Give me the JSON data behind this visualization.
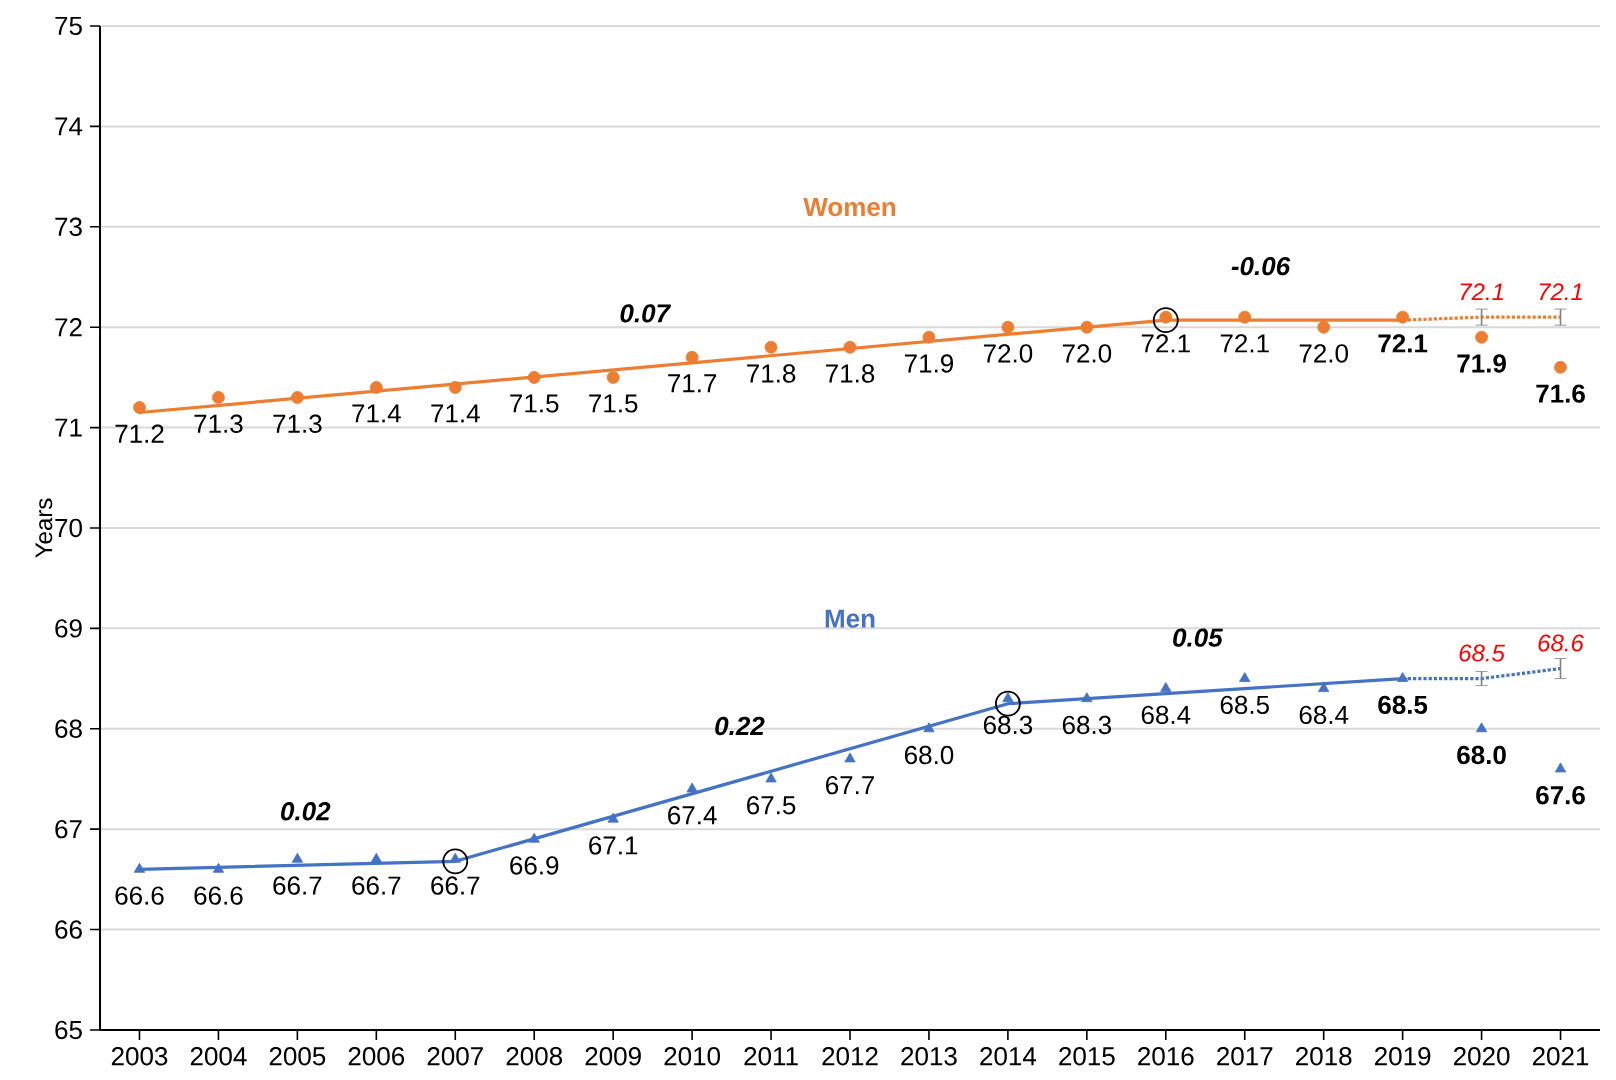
{
  "chart_data": {
    "type": "scatter",
    "ylabel": "Years",
    "xlim": [
      2002.5,
      2021.5
    ],
    "ylim": [
      65,
      75
    ],
    "xticks": [
      2003,
      2004,
      2005,
      2006,
      2007,
      2008,
      2009,
      2010,
      2011,
      2012,
      2013,
      2014,
      2015,
      2016,
      2017,
      2018,
      2019,
      2020,
      2021
    ],
    "yticks": [
      65,
      66,
      67,
      68,
      69,
      70,
      71,
      72,
      73,
      74,
      75
    ],
    "grid": "y",
    "x": [
      2003,
      2004,
      2005,
      2006,
      2007,
      2008,
      2009,
      2010,
      2011,
      2012,
      2013,
      2014,
      2015,
      2016,
      2017,
      2018,
      2019,
      2020,
      2021
    ],
    "series": [
      {
        "name": "Women",
        "marker": "circle",
        "color": "#ed7d31",
        "values": [
          71.2,
          71.3,
          71.3,
          71.4,
          71.4,
          71.5,
          71.5,
          71.7,
          71.8,
          71.8,
          71.9,
          72.0,
          72.0,
          72.1,
          72.1,
          72.0,
          72.1,
          71.9,
          71.6
        ],
        "value_labels": [
          "71.2",
          "71.3",
          "71.3",
          "71.4",
          "71.4",
          "71.5",
          "71.5",
          "71.7",
          "71.8",
          "71.8",
          "71.9",
          "72.0",
          "72.0",
          "72.1",
          "72.1",
          "72.0",
          "72.1",
          "71.9",
          "71.6"
        ]
      },
      {
        "name": "Men",
        "marker": "triangle",
        "color": "#4472c4",
        "values": [
          66.6,
          66.6,
          66.7,
          66.7,
          66.7,
          66.9,
          67.1,
          67.4,
          67.5,
          67.7,
          68.0,
          68.3,
          68.3,
          68.4,
          68.5,
          68.4,
          68.5,
          68.0,
          67.6
        ],
        "value_labels": [
          "66.6",
          "66.6",
          "66.7",
          "66.7",
          "66.7",
          "66.9",
          "67.1",
          "67.4",
          "67.5",
          "67.7",
          "68.0",
          "68.3",
          "68.3",
          "68.4",
          "68.5",
          "68.4",
          "68.5",
          "68.0",
          "67.6"
        ]
      },
      {
        "type": "line",
        "marker": "none",
        "line_style": "solid",
        "color": "#ed7d31",
        "x": [
          2003,
          2016,
          2019
        ],
        "values": [
          71.15,
          72.07,
          72.07
        ]
      },
      {
        "type": "line",
        "marker": "none",
        "line_style": "solid",
        "color": "#4472c4",
        "x": [
          2003,
          2007,
          2014,
          2019
        ],
        "values": [
          66.6,
          66.68,
          68.25,
          68.5
        ]
      },
      {
        "type": "line",
        "marker": "none",
        "line_style": "dotted",
        "color": "#ed7d31",
        "x": [
          2019,
          2020,
          2021
        ],
        "values": [
          72.07,
          72.1,
          72.1
        ],
        "errors": [
          null,
          0.08,
          0.08
        ],
        "value_labels": [
          null,
          "72.1",
          "72.1"
        ]
      },
      {
        "type": "line",
        "marker": "none",
        "line_style": "dotted",
        "color": "#4472c4",
        "x": [
          2019,
          2020,
          2021
        ],
        "values": [
          68.5,
          68.5,
          68.6
        ],
        "errors": [
          null,
          0.07,
          0.1
        ],
        "value_labels": [
          null,
          "68.5",
          "68.6"
        ]
      },
      {
        "marker": "circle",
        "color": "#000000",
        "x": [
          2007,
          2014,
          2016
        ],
        "values": [
          66.68,
          68.25,
          72.07
        ]
      }
    ],
    "annotations": [
      {
        "text": "0.07",
        "x": 2009.4,
        "y": 71.6
      },
      {
        "text": "-0.06",
        "x": 2017.2,
        "y": 72.07
      },
      {
        "text": "0.02",
        "x": 2005.1,
        "y": 66.64
      },
      {
        "text": "0.22",
        "x": 2010.6,
        "y": 67.49
      },
      {
        "text": "0.05",
        "x": 2016.4,
        "y": 68.37
      }
    ]
  }
}
